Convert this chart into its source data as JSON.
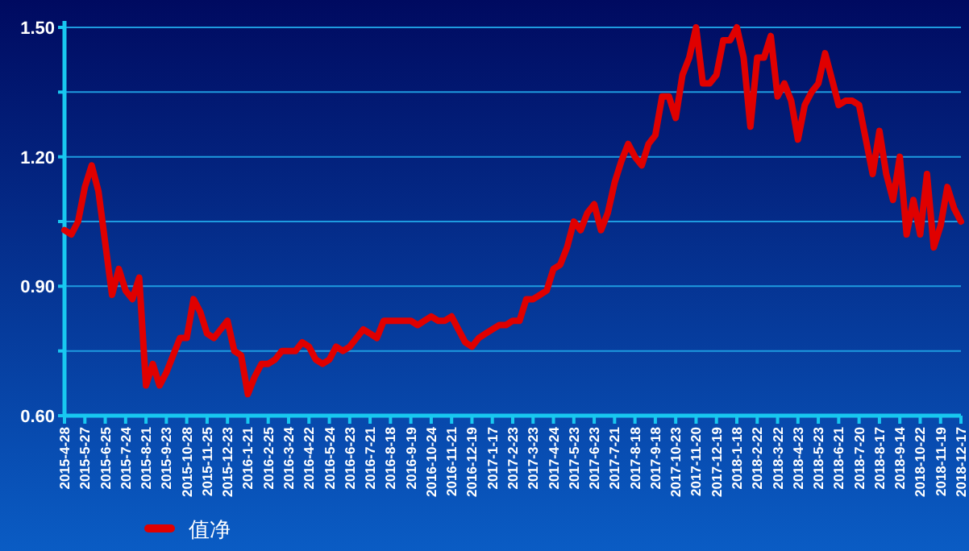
{
  "chart_data": {
    "type": "line",
    "categories": [
      "2015-4-28",
      null,
      null,
      "2015-5-27",
      null,
      null,
      "2015-6-25",
      null,
      null,
      "2015-7-24",
      null,
      null,
      "2015-8-21",
      null,
      null,
      "2015-9-23",
      null,
      null,
      "2015-10-28",
      null,
      null,
      "2015-11-25",
      null,
      null,
      "2015-12-23",
      null,
      null,
      "2016-1-21",
      null,
      null,
      "2016-2-25",
      null,
      null,
      "2016-3-24",
      null,
      null,
      "2016-4-22",
      null,
      null,
      "2016-5-24",
      null,
      null,
      "2016-6-23",
      null,
      null,
      "2016-7-21",
      null,
      null,
      "2016-8-18",
      null,
      null,
      "2016-9-19",
      null,
      null,
      "2016-10-24",
      null,
      null,
      "2016-11-21",
      null,
      null,
      "2016-12-19",
      null,
      null,
      "2017-1-17",
      null,
      null,
      "2017-2-23",
      null,
      null,
      "2017-3-23",
      null,
      null,
      "2017-4-24",
      null,
      null,
      "2017-5-23",
      null,
      null,
      "2017-6-23",
      null,
      null,
      "2017-7-21",
      null,
      null,
      "2017-8-18",
      null,
      null,
      "2017-9-18",
      null,
      null,
      "2017-10-23",
      null,
      null,
      "2017-11-20",
      null,
      null,
      "2017-12-19",
      null,
      null,
      "2018-1-18",
      null,
      null,
      "2018-2-22",
      null,
      null,
      "2018-3-22",
      null,
      null,
      "2018-4-23",
      null,
      null,
      "2018-5-23",
      null,
      null,
      "2018-6-21",
      null,
      null,
      "2018-7-20",
      null,
      null,
      "2018-8-17",
      null,
      null,
      "2018-9-14",
      null,
      null,
      "2018-10-22",
      null,
      null,
      "2018-11-19",
      null,
      null,
      "2018-12-17"
    ],
    "series": [
      {
        "name": "值净",
        "color": "#e00000",
        "values": [
          1.03,
          1.02,
          1.05,
          1.13,
          1.18,
          1.12,
          1.0,
          0.88,
          0.94,
          0.89,
          0.87,
          0.92,
          0.67,
          0.72,
          0.67,
          0.7,
          0.74,
          0.78,
          0.78,
          0.87,
          0.84,
          0.79,
          0.78,
          0.8,
          0.82,
          0.75,
          0.74,
          0.65,
          0.69,
          0.72,
          0.72,
          0.73,
          0.75,
          0.75,
          0.75,
          0.77,
          0.76,
          0.73,
          0.72,
          0.73,
          0.76,
          0.75,
          0.76,
          0.78,
          0.8,
          0.79,
          0.78,
          0.82,
          0.82,
          0.82,
          0.82,
          0.82,
          0.81,
          0.82,
          0.83,
          0.82,
          0.82,
          0.83,
          0.8,
          0.77,
          0.76,
          0.78,
          0.79,
          0.8,
          0.81,
          0.81,
          0.82,
          0.82,
          0.87,
          0.87,
          0.88,
          0.89,
          0.94,
          0.95,
          0.99,
          1.05,
          1.03,
          1.07,
          1.09,
          1.03,
          1.07,
          1.14,
          1.19,
          1.23,
          1.2,
          1.18,
          1.23,
          1.25,
          1.34,
          1.34,
          1.29,
          1.39,
          1.43,
          1.5,
          1.37,
          1.37,
          1.39,
          1.47,
          1.47,
          1.5,
          1.43,
          1.27,
          1.43,
          1.43,
          1.48,
          1.34,
          1.37,
          1.33,
          1.24,
          1.32,
          1.35,
          1.37,
          1.44,
          1.38,
          1.32,
          1.33,
          1.33,
          1.32,
          1.24,
          1.16,
          1.26,
          1.16,
          1.1,
          1.2,
          1.02,
          1.1,
          1.02,
          1.16,
          0.99,
          1.04,
          1.13,
          1.08,
          1.05
        ]
      }
    ],
    "ylim": [
      0.6,
      1.5
    ],
    "yticks": [
      {
        "value": 0.6,
        "label": "0.60"
      },
      {
        "value": 0.75,
        "label": null
      },
      {
        "value": 0.9,
        "label": "0.90"
      },
      {
        "value": 1.05,
        "label": null
      },
      {
        "value": 1.2,
        "label": "1.20"
      },
      {
        "value": 1.35,
        "label": null
      },
      {
        "value": 1.5,
        "label": "1.50"
      }
    ],
    "grid": "y",
    "legend": "bottom"
  }
}
